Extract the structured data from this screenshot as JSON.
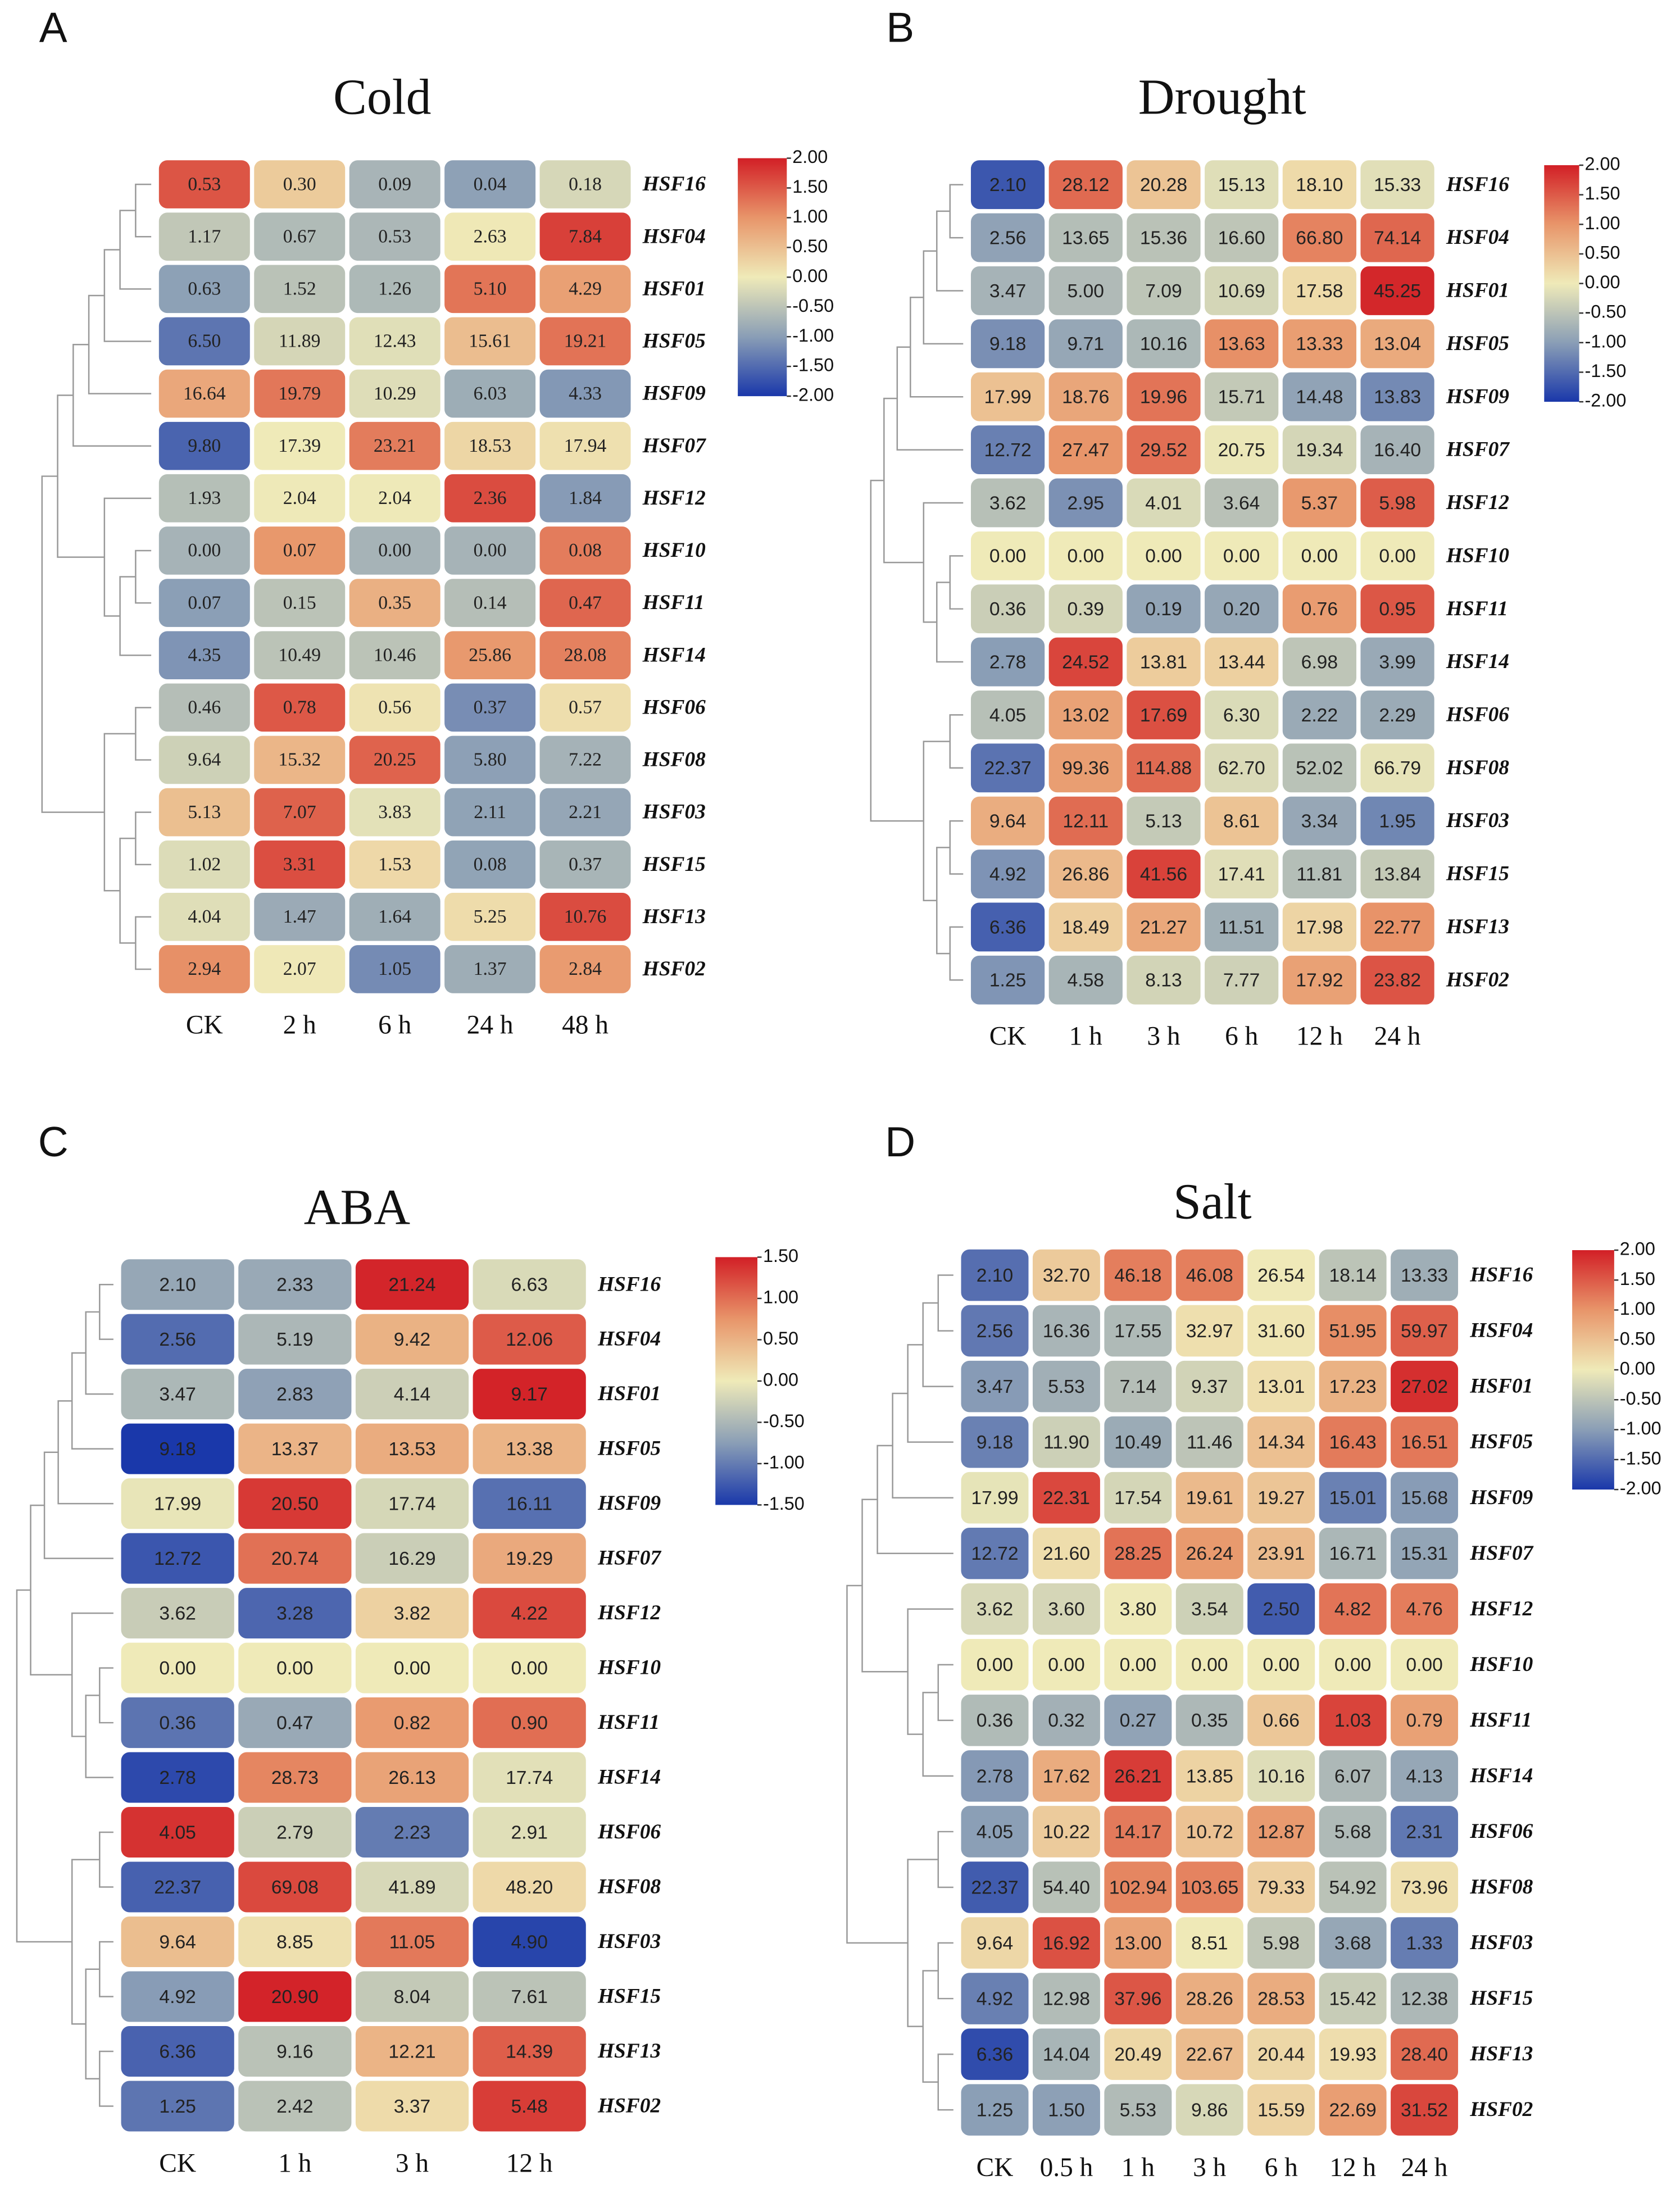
{
  "chart_data": [
    {
      "type": "heatmap",
      "panel_label": "A",
      "title": "Cold",
      "x": [
        "CK",
        "2 h",
        "6 h",
        "24 h",
        "48 h"
      ],
      "y": [
        "HSF16",
        "HSF04",
        "HSF01",
        "HSF05",
        "HSF09",
        "HSF07",
        "HSF12",
        "HSF10",
        "HSF11",
        "HSF14",
        "HSF06",
        "HSF08",
        "HSF03",
        "HSF15",
        "HSF13",
        "HSF02"
      ],
      "values": [
        [
          0.53,
          0.3,
          0.09,
          0.04,
          0.18
        ],
        [
          1.17,
          0.67,
          0.53,
          2.63,
          7.84
        ],
        [
          0.63,
          1.52,
          1.26,
          5.1,
          4.29
        ],
        [
          6.5,
          11.89,
          12.43,
          15.61,
          19.21
        ],
        [
          16.64,
          19.79,
          10.29,
          6.03,
          4.33
        ],
        [
          9.8,
          17.39,
          23.21,
          18.53,
          17.94
        ],
        [
          1.93,
          2.04,
          2.04,
          2.36,
          1.84
        ],
        [
          0,
          0.07,
          0,
          0,
          0.08
        ],
        [
          0.07,
          0.15,
          0.35,
          0.14,
          0.47
        ],
        [
          4.35,
          10.49,
          10.46,
          25.86,
          28.08
        ],
        [
          0.46,
          0.78,
          0.56,
          0.37,
          0.57
        ],
        [
          9.64,
          15.32,
          20.25,
          5.8,
          7.22
        ],
        [
          5.13,
          7.07,
          3.83,
          2.11,
          2.21
        ],
        [
          1.02,
          3.31,
          1.53,
          0.08,
          0.37
        ],
        [
          4.04,
          1.47,
          1.64,
          5.25,
          10.76
        ],
        [
          2.94,
          2.07,
          1.05,
          1.37,
          2.84
        ]
      ],
      "value_labels": [
        [
          "0.53",
          "0.30",
          "0.09",
          "0.04",
          "0.18"
        ],
        [
          "1.17",
          "0.67",
          "0.53",
          "2.63",
          "7.84"
        ],
        [
          "0.63",
          "1.52",
          "1.26",
          "5.10",
          "4.29"
        ],
        [
          "6.50",
          "11.89",
          "12.43",
          "15.61",
          "19.21"
        ],
        [
          "16.64",
          "19.79",
          "10.29",
          "6.03",
          "4.33"
        ],
        [
          "9.80",
          "17.39",
          "23.21",
          "18.53",
          "17.94"
        ],
        [
          "1.93",
          "2.04",
          "2.04",
          "2.36",
          "1.84"
        ],
        [
          "0.00",
          "0.07",
          "0.00",
          "0.00",
          "0.08"
        ],
        [
          "0.07",
          "0.15",
          "0.35",
          "0.14",
          "0.47"
        ],
        [
          "4.35",
          "10.49",
          "10.46",
          "25.86",
          "28.08"
        ],
        [
          "0.46",
          "0.78",
          "0.56",
          "0.37",
          "0.57"
        ],
        [
          "9.64",
          "15.32",
          "20.25",
          "5.80",
          "7.22"
        ],
        [
          "5.13",
          "7.07",
          "3.83",
          "2.11",
          "2.21"
        ],
        [
          "1.02",
          "3.31",
          "1.53",
          "0.08",
          "0.37"
        ],
        [
          "4.04",
          "1.47",
          "1.64",
          "5.25",
          "10.76"
        ],
        [
          "2.94",
          "2.07",
          "1.05",
          "1.37",
          "2.84"
        ]
      ],
      "clim": [
        -2,
        2
      ],
      "cticks": [
        {
          "value": 2,
          "label": "2.00"
        },
        {
          "value": 1.5,
          "label": "1.50"
        },
        {
          "value": 1,
          "label": "1.00"
        },
        {
          "value": 0.5,
          "label": "0.50"
        },
        {
          "value": 0,
          "label": "0.00"
        },
        {
          "value": -0.5,
          "label": "-0.50"
        },
        {
          "value": -1,
          "label": "-1.00"
        },
        {
          "value": -1.5,
          "label": "-1.50"
        },
        {
          "value": -2,
          "label": "-2.00"
        }
      ]
    },
    {
      "type": "heatmap",
      "panel_label": "B",
      "title": "Drought",
      "x": [
        "CK",
        "1 h",
        "3 h",
        "6 h",
        "12 h",
        "24 h"
      ],
      "y": [
        "HSF16",
        "HSF04",
        "HSF01",
        "HSF05",
        "HSF09",
        "HSF07",
        "HSF12",
        "HSF10",
        "HSF11",
        "HSF14",
        "HSF06",
        "HSF08",
        "HSF03",
        "HSF15",
        "HSF13",
        "HSF02"
      ],
      "values": [
        [
          2.1,
          28.12,
          20.28,
          15.13,
          18.1,
          15.33
        ],
        [
          2.56,
          13.65,
          15.36,
          16.6,
          66.8,
          74.14
        ],
        [
          3.47,
          5,
          7.09,
          10.69,
          17.58,
          45.25
        ],
        [
          9.18,
          9.71,
          10.16,
          13.63,
          13.33,
          13.04
        ],
        [
          17.99,
          18.76,
          19.96,
          15.71,
          14.48,
          13.83
        ],
        [
          12.72,
          27.47,
          29.52,
          20.75,
          19.34,
          16.4
        ],
        [
          3.62,
          2.95,
          4.01,
          3.64,
          5.37,
          5.98
        ],
        [
          0,
          0,
          0,
          0,
          0,
          0
        ],
        [
          0.36,
          0.39,
          0.19,
          0.2,
          0.76,
          0.95
        ],
        [
          2.78,
          24.52,
          13.81,
          13.44,
          6.98,
          3.99
        ],
        [
          4.05,
          13.02,
          17.69,
          6.3,
          2.22,
          2.29
        ],
        [
          22.37,
          99.36,
          114.88,
          62.7,
          52.02,
          66.79
        ],
        [
          9.64,
          12.11,
          5.13,
          8.61,
          3.34,
          1.95
        ],
        [
          4.92,
          26.86,
          41.56,
          17.41,
          11.81,
          13.84
        ],
        [
          6.36,
          18.49,
          21.27,
          11.51,
          17.98,
          22.77
        ],
        [
          1.25,
          4.58,
          8.13,
          7.77,
          17.92,
          23.82
        ]
      ],
      "value_labels": [
        [
          "2.10",
          "28.12",
          "20.28",
          "15.13",
          "18.10",
          "15.33"
        ],
        [
          "2.56",
          "13.65",
          "15.36",
          "16.60",
          "66.80",
          "74.14"
        ],
        [
          "3.47",
          "5.00",
          "7.09",
          "10.69",
          "17.58",
          "45.25"
        ],
        [
          "9.18",
          "9.71",
          "10.16",
          "13.63",
          "13.33",
          "13.04"
        ],
        [
          "17.99",
          "18.76",
          "19.96",
          "15.71",
          "14.48",
          "13.83"
        ],
        [
          "12.72",
          "27.47",
          "29.52",
          "20.75",
          "19.34",
          "16.40"
        ],
        [
          "3.62",
          "2.95",
          "4.01",
          "3.64",
          "5.37",
          "5.98"
        ],
        [
          "0.00",
          "0.00",
          "0.00",
          "0.00",
          "0.00",
          "0.00"
        ],
        [
          "0.36",
          "0.39",
          "0.19",
          "0.20",
          "0.76",
          "0.95"
        ],
        [
          "2.78",
          "24.52",
          "13.81",
          "13.44",
          "6.98",
          "3.99"
        ],
        [
          "4.05",
          "13.02",
          "17.69",
          "6.30",
          "2.22",
          "2.29"
        ],
        [
          "22.37",
          "99.36",
          "114.88",
          "62.70",
          "52.02",
          "66.79"
        ],
        [
          "9.64",
          "12.11",
          "5.13",
          "8.61",
          "3.34",
          "1.95"
        ],
        [
          "4.92",
          "26.86",
          "41.56",
          "17.41",
          "11.81",
          "13.84"
        ],
        [
          "6.36",
          "18.49",
          "21.27",
          "11.51",
          "17.98",
          "22.77"
        ],
        [
          "1.25",
          "4.58",
          "8.13",
          "7.77",
          "17.92",
          "23.82"
        ]
      ],
      "clim": [
        -2,
        2
      ],
      "cticks": [
        {
          "value": 2,
          "label": "2.00"
        },
        {
          "value": 1.5,
          "label": "1.50"
        },
        {
          "value": 1,
          "label": "1.00"
        },
        {
          "value": 0.5,
          "label": "0.50"
        },
        {
          "value": 0,
          "label": "0.00"
        },
        {
          "value": -0.5,
          "label": "-0.50"
        },
        {
          "value": -1,
          "label": "-1.00"
        },
        {
          "value": -1.5,
          "label": "-1.50"
        },
        {
          "value": -2,
          "label": "-2.00"
        }
      ]
    },
    {
      "type": "heatmap",
      "panel_label": "C",
      "title": "ABA",
      "x": [
        "CK",
        "1 h",
        "3 h",
        "12 h"
      ],
      "y": [
        "HSF16",
        "HSF04",
        "HSF01",
        "HSF05",
        "HSF09",
        "HSF07",
        "HSF12",
        "HSF10",
        "HSF11",
        "HSF14",
        "HSF06",
        "HSF08",
        "HSF03",
        "HSF15",
        "HSF13",
        "HSF02"
      ],
      "values": [
        [
          2.1,
          2.33,
          21.24,
          6.63
        ],
        [
          2.56,
          5.19,
          9.42,
          12.06
        ],
        [
          3.47,
          2.83,
          4.14,
          9.17
        ],
        [
          9.18,
          13.37,
          13.53,
          13.38
        ],
        [
          17.99,
          20.5,
          17.74,
          16.11
        ],
        [
          12.72,
          20.74,
          16.29,
          19.29
        ],
        [
          3.62,
          3.28,
          3.82,
          4.22
        ],
        [
          0,
          0,
          0,
          0
        ],
        [
          0.36,
          0.47,
          0.82,
          0.9
        ],
        [
          2.78,
          28.73,
          26.13,
          17.74
        ],
        [
          4.05,
          2.79,
          2.23,
          2.91
        ],
        [
          22.37,
          69.08,
          41.89,
          48.2
        ],
        [
          9.64,
          8.85,
          11.05,
          4.9
        ],
        [
          4.92,
          20.9,
          8.04,
          7.61
        ],
        [
          6.36,
          9.16,
          12.21,
          14.39
        ],
        [
          1.25,
          2.42,
          3.37,
          5.48
        ]
      ],
      "value_labels": [
        [
          "2.10",
          "2.33",
          "21.24",
          "6.63"
        ],
        [
          "2.56",
          "5.19",
          "9.42",
          "12.06"
        ],
        [
          "3.47",
          "2.83",
          "4.14",
          "9.17"
        ],
        [
          "9.18",
          "13.37",
          "13.53",
          "13.38"
        ],
        [
          "17.99",
          "20.50",
          "17.74",
          "16.11"
        ],
        [
          "12.72",
          "20.74",
          "16.29",
          "19.29"
        ],
        [
          "3.62",
          "3.28",
          "3.82",
          "4.22"
        ],
        [
          "0.00",
          "0.00",
          "0.00",
          "0.00"
        ],
        [
          "0.36",
          "0.47",
          "0.82",
          "0.90"
        ],
        [
          "2.78",
          "28.73",
          "26.13",
          "17.74"
        ],
        [
          "4.05",
          "2.79",
          "2.23",
          "2.91"
        ],
        [
          "22.37",
          "69.08",
          "41.89",
          "48.20"
        ],
        [
          "9.64",
          "8.85",
          "11.05",
          "4.90"
        ],
        [
          "4.92",
          "20.90",
          "8.04",
          "7.61"
        ],
        [
          "6.36",
          "9.16",
          "12.21",
          "14.39"
        ],
        [
          "1.25",
          "2.42",
          "3.37",
          "5.48"
        ]
      ],
      "clim": [
        -1.5,
        1.5
      ],
      "cticks": [
        {
          "value": 1.5,
          "label": "1.50"
        },
        {
          "value": 1,
          "label": "1.00"
        },
        {
          "value": 0.5,
          "label": "0.50"
        },
        {
          "value": 0,
          "label": "0.00"
        },
        {
          "value": -0.5,
          "label": "-0.50"
        },
        {
          "value": -1,
          "label": "-1.00"
        },
        {
          "value": -1.5,
          "label": "-1.50"
        }
      ]
    },
    {
      "type": "heatmap",
      "panel_label": "D",
      "title": "Salt",
      "x": [
        "CK",
        "0.5 h",
        "1 h",
        "3 h",
        "6 h",
        "12 h",
        "24 h"
      ],
      "y": [
        "HSF16",
        "HSF04",
        "HSF01",
        "HSF05",
        "HSF09",
        "HSF07",
        "HSF12",
        "HSF10",
        "HSF11",
        "HSF14",
        "HSF06",
        "HSF08",
        "HSF03",
        "HSF15",
        "HSF13",
        "HSF02"
      ],
      "values": [
        [
          2.1,
          32.7,
          46.18,
          46.08,
          26.54,
          18.14,
          13.33
        ],
        [
          2.56,
          16.36,
          17.55,
          32.97,
          31.6,
          51.95,
          59.97
        ],
        [
          3.47,
          5.53,
          7.14,
          9.37,
          13.01,
          17.23,
          27.02
        ],
        [
          9.18,
          11.9,
          10.49,
          11.46,
          14.34,
          16.43,
          16.51
        ],
        [
          17.99,
          22.31,
          17.54,
          19.61,
          19.27,
          15.01,
          15.68
        ],
        [
          12.72,
          21.6,
          28.25,
          26.24,
          23.91,
          16.71,
          15.31
        ],
        [
          3.62,
          3.6,
          3.8,
          3.54,
          2.5,
          4.82,
          4.76
        ],
        [
          0,
          0,
          0,
          0,
          0,
          0,
          0
        ],
        [
          0.36,
          0.32,
          0.27,
          0.35,
          0.66,
          1.03,
          0.79
        ],
        [
          2.78,
          17.62,
          26.21,
          13.85,
          10.16,
          6.07,
          4.13
        ],
        [
          4.05,
          10.22,
          14.17,
          10.72,
          12.87,
          5.68,
          2.31
        ],
        [
          22.37,
          54.4,
          102.94,
          103.65,
          79.33,
          54.92,
          73.96
        ],
        [
          9.64,
          16.92,
          13,
          8.51,
          5.98,
          3.68,
          1.33
        ],
        [
          4.92,
          12.98,
          37.96,
          28.26,
          28.53,
          15.42,
          12.38
        ],
        [
          6.36,
          14.04,
          20.49,
          22.67,
          20.44,
          19.93,
          28.4
        ],
        [
          1.25,
          1.5,
          5.53,
          9.86,
          15.59,
          22.69,
          31.52
        ]
      ],
      "value_labels": [
        [
          "2.10",
          "32.70",
          "46.18",
          "46.08",
          "26.54",
          "18.14",
          "13.33"
        ],
        [
          "2.56",
          "16.36",
          "17.55",
          "32.97",
          "31.60",
          "51.95",
          "59.97"
        ],
        [
          "3.47",
          "5.53",
          "7.14",
          "9.37",
          "13.01",
          "17.23",
          "27.02"
        ],
        [
          "9.18",
          "11.90",
          "10.49",
          "11.46",
          "14.34",
          "16.43",
          "16.51"
        ],
        [
          "17.99",
          "22.31",
          "17.54",
          "19.61",
          "19.27",
          "15.01",
          "15.68"
        ],
        [
          "12.72",
          "21.60",
          "28.25",
          "26.24",
          "23.91",
          "16.71",
          "15.31"
        ],
        [
          "3.62",
          "3.60",
          "3.80",
          "3.54",
          "2.50",
          "4.82",
          "4.76"
        ],
        [
          "0.00",
          "0.00",
          "0.00",
          "0.00",
          "0.00",
          "0.00",
          "0.00"
        ],
        [
          "0.36",
          "0.32",
          "0.27",
          "0.35",
          "0.66",
          "1.03",
          "0.79"
        ],
        [
          "2.78",
          "17.62",
          "26.21",
          "13.85",
          "10.16",
          "6.07",
          "4.13"
        ],
        [
          "4.05",
          "10.22",
          "14.17",
          "10.72",
          "12.87",
          "5.68",
          "2.31"
        ],
        [
          "22.37",
          "54.40",
          "102.94",
          "103.65",
          "79.33",
          "54.92",
          "73.96"
        ],
        [
          "9.64",
          "16.92",
          "13.00",
          "8.51",
          "5.98",
          "3.68",
          "1.33"
        ],
        [
          "4.92",
          "12.98",
          "37.96",
          "28.26",
          "28.53",
          "15.42",
          "12.38"
        ],
        [
          "6.36",
          "14.04",
          "20.49",
          "22.67",
          "20.44",
          "19.93",
          "28.40"
        ],
        [
          "1.25",
          "1.50",
          "5.53",
          "9.86",
          "15.59",
          "22.69",
          "31.52"
        ]
      ],
      "clim": [
        -2,
        2
      ],
      "cticks": [
        {
          "value": 2,
          "label": "2.00"
        },
        {
          "value": 1.5,
          "label": "1.50"
        },
        {
          "value": 1,
          "label": "1.00"
        },
        {
          "value": 0.5,
          "label": "0.50"
        },
        {
          "value": 0,
          "label": "0.00"
        },
        {
          "value": -0.5,
          "label": "-0.50"
        },
        {
          "value": -1,
          "label": "-1.00"
        },
        {
          "value": -1.5,
          "label": "-1.50"
        },
        {
          "value": -2,
          "label": "-2.00"
        }
      ]
    }
  ]
}
